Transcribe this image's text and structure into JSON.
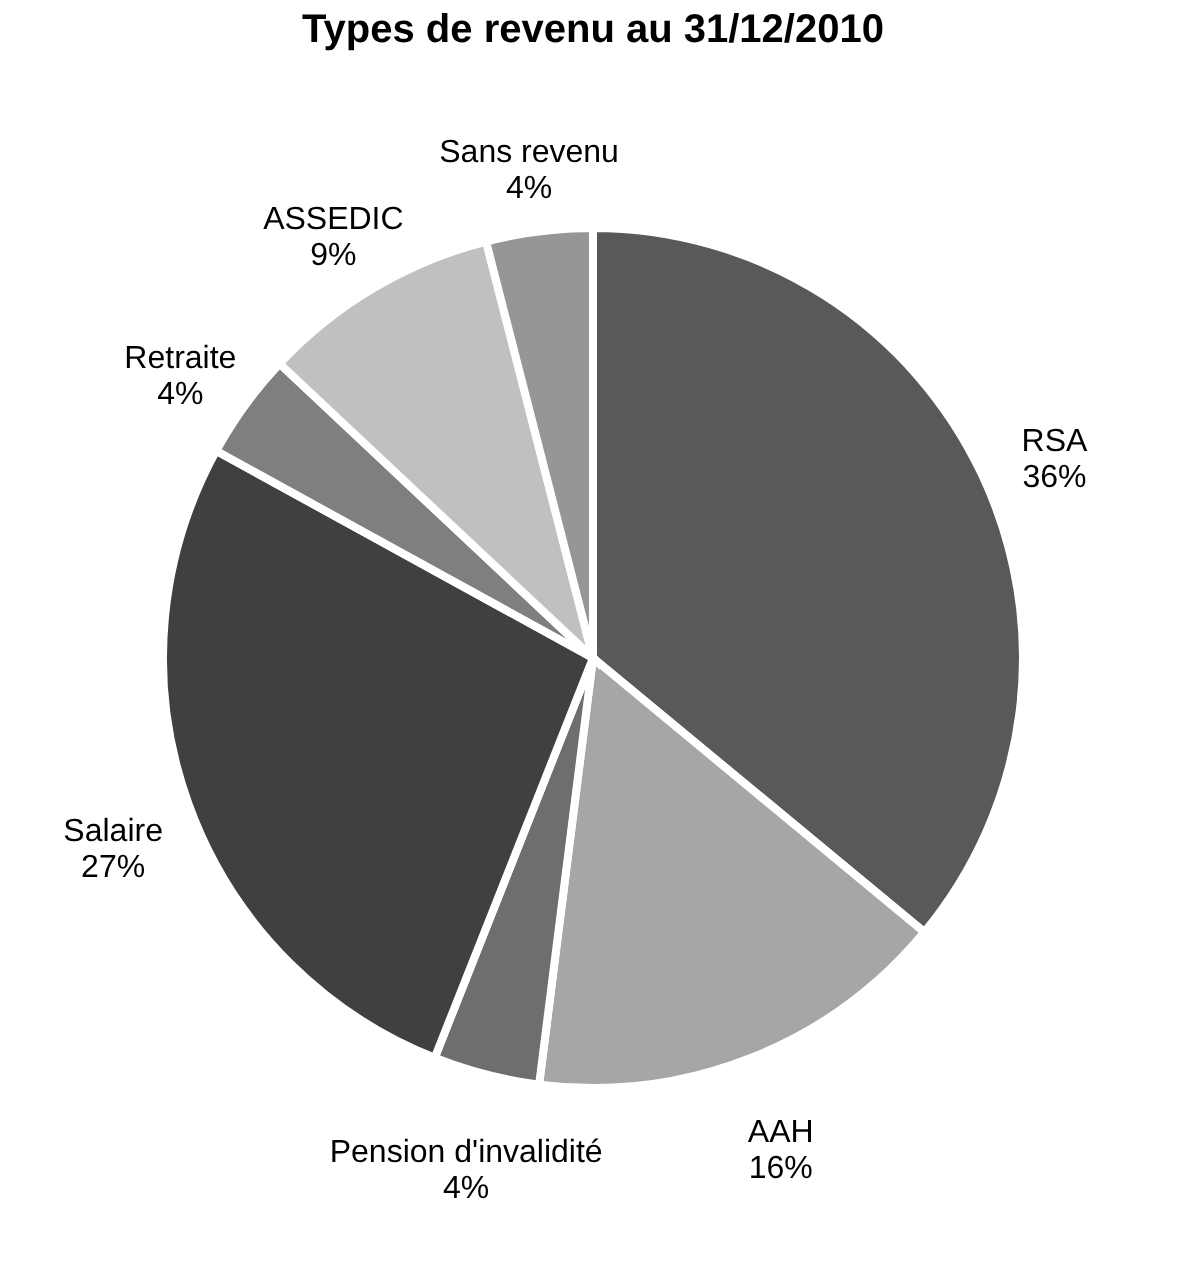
{
  "chart_data": {
    "type": "pie",
    "title": "Types de revenu au 31/12/2010",
    "categories": [
      "RSA",
      "AAH",
      "Pension d'invalidité",
      "Salaire",
      "Retraite",
      "ASSEDIC",
      "Sans revenu"
    ],
    "values": [
      36,
      16,
      4,
      27,
      4,
      9,
      4
    ],
    "value_labels": [
      "36%",
      "16%",
      "4%",
      "27%",
      "4%",
      "9%",
      "4%"
    ],
    "colors": [
      "#595959",
      "#a6a6a6",
      "#6e6e6e",
      "#404040",
      "#7f7f7f",
      "#c0c0c0",
      "#969696"
    ]
  }
}
